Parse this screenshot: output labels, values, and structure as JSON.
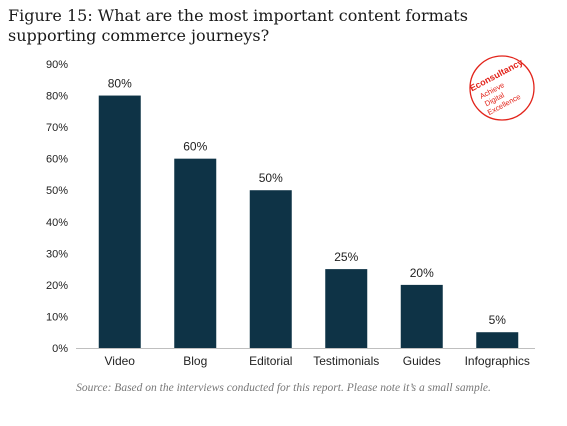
{
  "title": "Figure 15: What are the most important content formats supporting commerce journeys?",
  "source": "Source: Based on the interviews conducted for this report. Please note it’s a small sample.",
  "logo": {
    "brand": "Econsultancy",
    "tagline_1": "Achieve",
    "tagline_2": "Digital",
    "tagline_3": "Excellence"
  },
  "colors": {
    "bar": "#0e3346",
    "logo": "#e2231a"
  },
  "chart_data": {
    "type": "bar",
    "title": "Figure 15: What are the most important content formats supporting commerce journeys?",
    "categories": [
      "Video",
      "Blog",
      "Editorial",
      "Testimonials",
      "Guides",
      "Infographics"
    ],
    "values": [
      80,
      60,
      50,
      25,
      20,
      5
    ],
    "value_labels": [
      "80%",
      "60%",
      "50%",
      "25%",
      "20%",
      "5%"
    ],
    "ylim": [
      0,
      90
    ],
    "yticks": [
      0,
      10,
      20,
      30,
      40,
      50,
      60,
      70,
      80,
      90
    ],
    "ytick_labels": [
      "0%",
      "10%",
      "20%",
      "30%",
      "40%",
      "50%",
      "60%",
      "70%",
      "80%",
      "90%"
    ],
    "grid": false,
    "legend": "none"
  }
}
